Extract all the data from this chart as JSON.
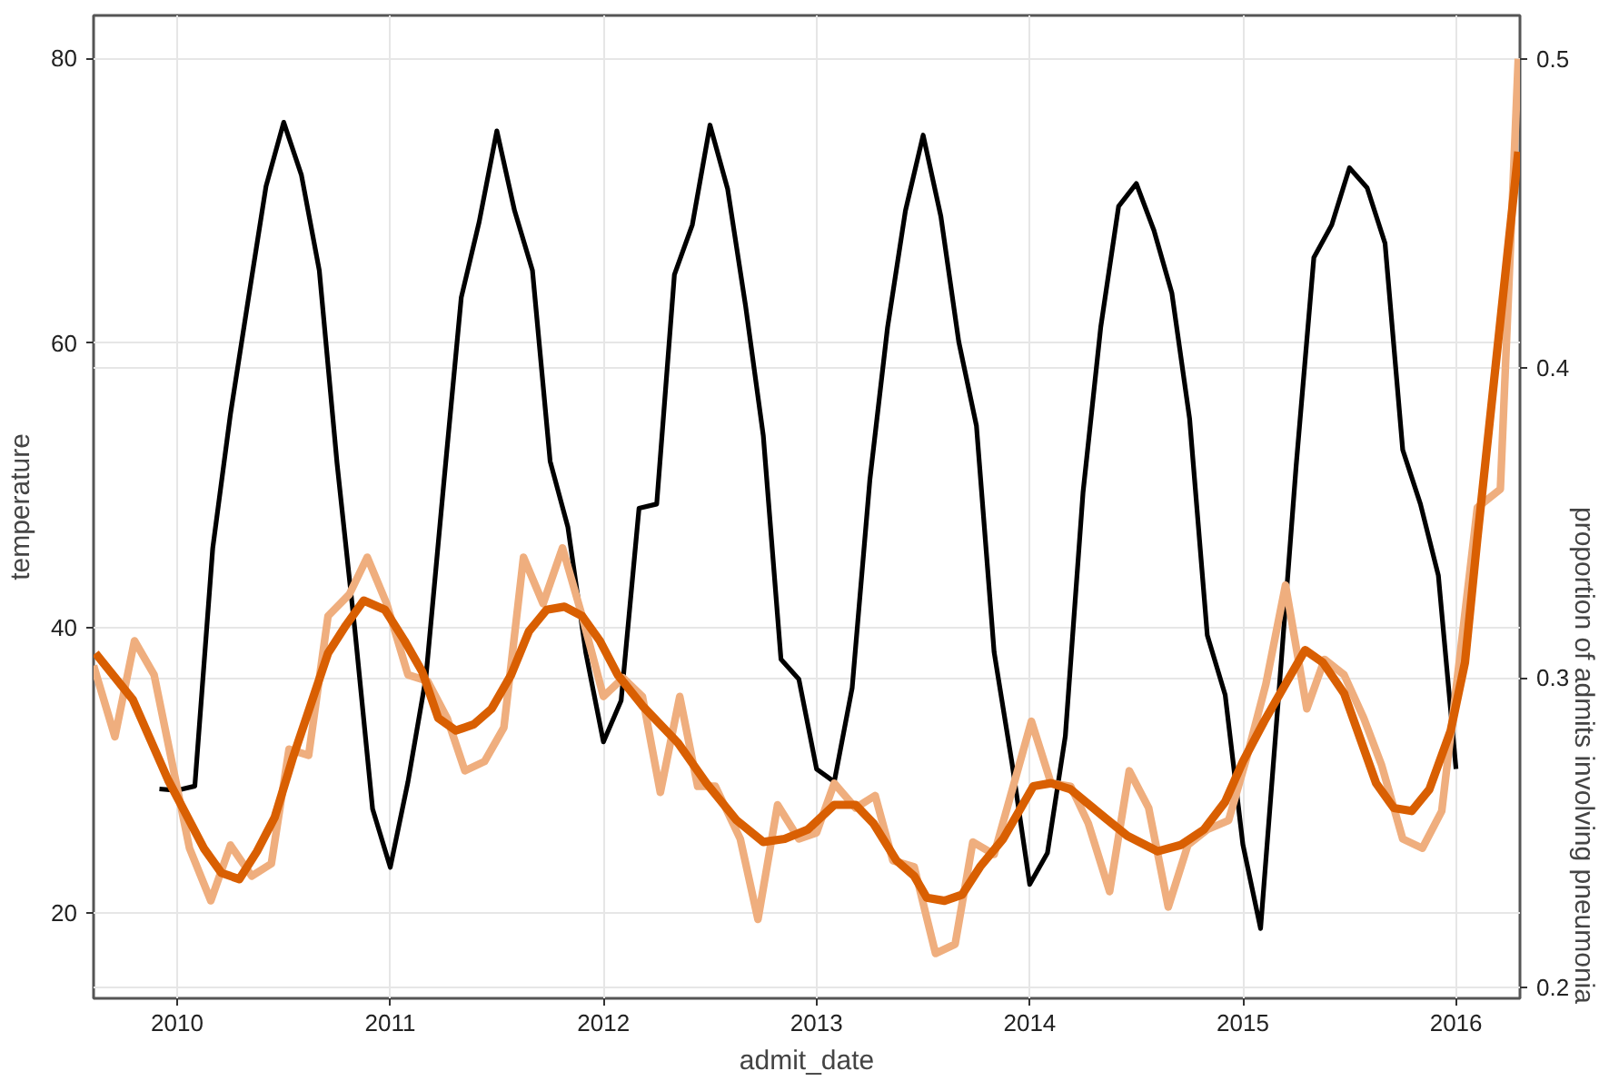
{
  "chart_data": {
    "type": "line",
    "xlabel": "admit_date",
    "ylabel": "temperature",
    "y2label": "proportion of admits involving pneumonia",
    "xlim": [
      2009.608,
      2016.3
    ],
    "xticks": [
      2010,
      2011,
      2012,
      2013,
      2014,
      2015,
      2016
    ],
    "ylim": [
      14,
      83
    ],
    "yticks": [
      20,
      40,
      60,
      80
    ],
    "y2lim": [
      0.1965,
      0.514
    ],
    "y2ticks": [
      0.2,
      0.3,
      0.4,
      0.5
    ],
    "grid": true,
    "line_style": "solid",
    "marker": "none",
    "series": [
      {
        "color": "#000000",
        "axis": "y",
        "x": [
          2009.917,
          2010.0,
          2010.083,
          2010.167,
          2010.25,
          2010.333,
          2010.417,
          2010.5,
          2010.583,
          2010.667,
          2010.75,
          2010.833,
          2010.917,
          2011.0,
          2011.083,
          2011.167,
          2011.25,
          2011.333,
          2011.417,
          2011.5,
          2011.583,
          2011.667,
          2011.75,
          2011.833,
          2011.917,
          2012.0,
          2012.083,
          2012.167,
          2012.25,
          2012.333,
          2012.417,
          2012.5,
          2012.583,
          2012.667,
          2012.75,
          2012.833,
          2012.917,
          2013.0,
          2013.083,
          2013.167,
          2013.25,
          2013.333,
          2013.417,
          2013.5,
          2013.583,
          2013.667,
          2013.75,
          2013.833,
          2013.917,
          2014.0,
          2014.083,
          2014.167,
          2014.25,
          2014.333,
          2014.417,
          2014.5,
          2014.583,
          2014.667,
          2014.75,
          2014.833,
          2014.917,
          2015.0,
          2015.083,
          2015.167,
          2015.25,
          2015.333,
          2015.417,
          2015.5,
          2015.583,
          2015.667,
          2015.75,
          2015.833,
          2015.917,
          2016.0
        ],
        "values": [
          28.7,
          28.6,
          28.9,
          45.6,
          55,
          63,
          71,
          75.5,
          71.8,
          65.1,
          51.6,
          40,
          27.3,
          23.2,
          29.2,
          36.5,
          50,
          63.2,
          68.5,
          74.9,
          69.3,
          65.1,
          51.7,
          47.1,
          38.3,
          32.0,
          34.9,
          48.4,
          48.7,
          64.8,
          68.3,
          75.3,
          70.8,
          62.6,
          53.5,
          37.8,
          36.4,
          30.1,
          29.2,
          35.8,
          50.4,
          61.1,
          69.3,
          74.6,
          68.9,
          60.1,
          54.2,
          38.3,
          30.5,
          22.0,
          24.2,
          32.4,
          49.5,
          61.1,
          69.6,
          71.2,
          67.9,
          63.5,
          54.7,
          39.5,
          35.3,
          24.8,
          18.9,
          35.1,
          51.4,
          66.0,
          68.3,
          72.3,
          70.9,
          67.0,
          52.5,
          48.7,
          43.7,
          30.1
        ]
      },
      {
        "color": "#efae7e",
        "axis": "y2",
        "x": [
          2009.608,
          2009.708,
          2009.8,
          2009.892,
          2010.058,
          2010.158,
          2010.25,
          2010.35,
          2010.442,
          2010.525,
          2010.617,
          2010.708,
          2010.808,
          2010.892,
          2010.983,
          2011.083,
          2011.175,
          2011.267,
          2011.35,
          2011.442,
          2011.533,
          2011.625,
          2011.717,
          2011.808,
          2011.9,
          2012.0,
          2012.092,
          2012.183,
          2012.267,
          2012.358,
          2012.442,
          2012.525,
          2012.642,
          2012.725,
          2012.817,
          2012.917,
          2013.0,
          2013.083,
          2013.183,
          2013.275,
          2013.358,
          2013.458,
          2013.558,
          2013.65,
          2013.733,
          2013.833,
          2014.008,
          2014.1,
          2014.192,
          2014.275,
          2014.375,
          2014.467,
          2014.558,
          2014.65,
          2014.742,
          2014.833,
          2014.933,
          2015.017,
          2015.108,
          2015.2,
          2015.3,
          2015.383,
          2015.475,
          2015.567,
          2015.65,
          2015.75,
          2015.842,
          2015.933,
          2016.1,
          2016.208,
          2016.292
        ],
        "values": [
          0.304,
          0.281,
          0.312,
          0.301,
          0.245,
          0.228,
          0.246,
          0.236,
          0.24,
          0.277,
          0.275,
          0.32,
          0.327,
          0.339,
          0.324,
          0.301,
          0.299,
          0.287,
          0.27,
          0.273,
          0.284,
          0.339,
          0.324,
          0.342,
          0.32,
          0.294,
          0.3,
          0.294,
          0.263,
          0.294,
          0.265,
          0.265,
          0.248,
          0.222,
          0.259,
          0.248,
          0.25,
          0.266,
          0.258,
          0.262,
          0.241,
          0.239,
          0.211,
          0.214,
          0.247,
          0.243,
          0.286,
          0.266,
          0.265,
          0.253,
          0.231,
          0.27,
          0.258,
          0.226,
          0.246,
          0.251,
          0.254,
          0.274,
          0.298,
          0.33,
          0.29,
          0.306,
          0.301,
          0.287,
          0.272,
          0.248,
          0.245,
          0.257,
          0.355,
          0.361,
          0.5
        ]
      },
      {
        "color": "#d95f02",
        "axis": "y2",
        "x": [
          2009.617,
          2009.792,
          2009.958,
          2010.125,
          2010.208,
          2010.292,
          2010.375,
          2010.458,
          2010.542,
          2010.708,
          2010.792,
          2010.875,
          2010.975,
          2011.067,
          2011.15,
          2011.225,
          2011.308,
          2011.392,
          2011.475,
          2011.567,
          2011.65,
          2011.733,
          2011.817,
          2011.9,
          2011.983,
          2012.067,
          2012.183,
          2012.35,
          2012.483,
          2012.625,
          2012.75,
          2012.85,
          2012.958,
          2013.083,
          2013.183,
          2013.267,
          2013.375,
          2013.458,
          2013.517,
          2013.6,
          2013.683,
          2013.767,
          2013.875,
          2014.017,
          2014.1,
          2014.192,
          2014.35,
          2014.458,
          2014.6,
          2014.708,
          2014.817,
          2014.917,
          2015.0,
          2015.1,
          2015.208,
          2015.292,
          2015.375,
          2015.475,
          2015.625,
          2015.708,
          2015.792,
          2015.875,
          2015.975,
          2016.042,
          2016.1,
          2016.292
        ],
        "values": [
          0.308,
          0.293,
          0.267,
          0.245,
          0.237,
          0.235,
          0.244,
          0.255,
          0.274,
          0.308,
          0.317,
          0.325,
          0.322,
          0.312,
          0.302,
          0.287,
          0.283,
          0.285,
          0.29,
          0.301,
          0.315,
          0.322,
          0.323,
          0.32,
          0.312,
          0.301,
          0.291,
          0.279,
          0.266,
          0.254,
          0.247,
          0.248,
          0.251,
          0.259,
          0.259,
          0.253,
          0.241,
          0.236,
          0.229,
          0.228,
          0.23,
          0.239,
          0.248,
          0.265,
          0.266,
          0.264,
          0.255,
          0.249,
          0.244,
          0.246,
          0.251,
          0.26,
          0.273,
          0.286,
          0.299,
          0.309,
          0.305,
          0.295,
          0.266,
          0.258,
          0.257,
          0.264,
          0.283,
          0.305,
          0.345,
          0.47
        ]
      }
    ]
  }
}
